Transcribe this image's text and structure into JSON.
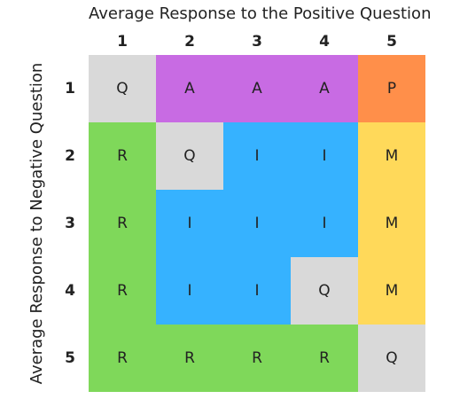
{
  "x_axis_title": "Average Response to the Positive Question",
  "y_axis_title": "Average Response to Negative Question",
  "columns": [
    "1",
    "2",
    "3",
    "4",
    "5"
  ],
  "rows": [
    "1",
    "2",
    "3",
    "4",
    "5"
  ],
  "colors": {
    "Q": "#d9d9d9",
    "A": "#c86be3",
    "P": "#ff8f4a",
    "R": "#7fd85a",
    "I": "#36b2ff",
    "M": "#ffd95a"
  },
  "cells": [
    [
      "Q",
      "A",
      "A",
      "A",
      "P"
    ],
    [
      "R",
      "Q",
      "I",
      "I",
      "M"
    ],
    [
      "R",
      "I",
      "I",
      "I",
      "M"
    ],
    [
      "R",
      "I",
      "I",
      "Q",
      "M"
    ],
    [
      "R",
      "R",
      "R",
      "R",
      "Q"
    ]
  ]
}
